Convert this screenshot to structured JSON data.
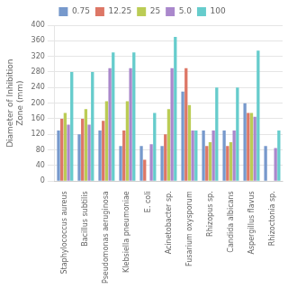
{
  "chart_data": {
    "type": "bar",
    "ylabel": "Diameter of Inhibition\nZone (mm)",
    "categories": [
      "Staphylococcus aureus",
      "Bacillus subtilis",
      "Pseudomonas aeruginosa",
      "Klebsiella pneumoniae",
      "E. coli",
      "Acinetobacter sp.",
      "Fusarium oxysporum",
      "Rhizopus sp.",
      "Candida albicans",
      "Aspergillus flavus",
      "Rhizoctonia sp."
    ],
    "series": [
      {
        "name": "0.75",
        "color": "#7799cc",
        "values": [
          130,
          120,
          130,
          90,
          90,
          90,
          230,
          130,
          130,
          200,
          90
        ]
      },
      {
        "name": "12.25",
        "color": "#dd7766",
        "values": [
          160,
          160,
          155,
          130,
          55,
          120,
          290,
          90,
          90,
          175,
          0
        ]
      },
      {
        "name": "25",
        "color": "#bbcc55",
        "values": [
          175,
          185,
          205,
          205,
          0,
          185,
          195,
          100,
          100,
          175,
          0
        ]
      },
      {
        "name": "5.0",
        "color": "#aa88cc",
        "values": [
          145,
          145,
          290,
          290,
          95,
          290,
          130,
          130,
          130,
          165,
          85
        ]
      },
      {
        "name": "100",
        "color": "#66cccc",
        "values": [
          280,
          280,
          330,
          330,
          175,
          370,
          130,
          240,
          240,
          335,
          130
        ]
      }
    ],
    "ylim": [
      0,
      400
    ],
    "yticks": [
      0,
      40,
      80,
      120,
      160,
      200,
      240,
      280,
      320,
      360,
      400
    ],
    "grid": true,
    "legend": "top"
  }
}
